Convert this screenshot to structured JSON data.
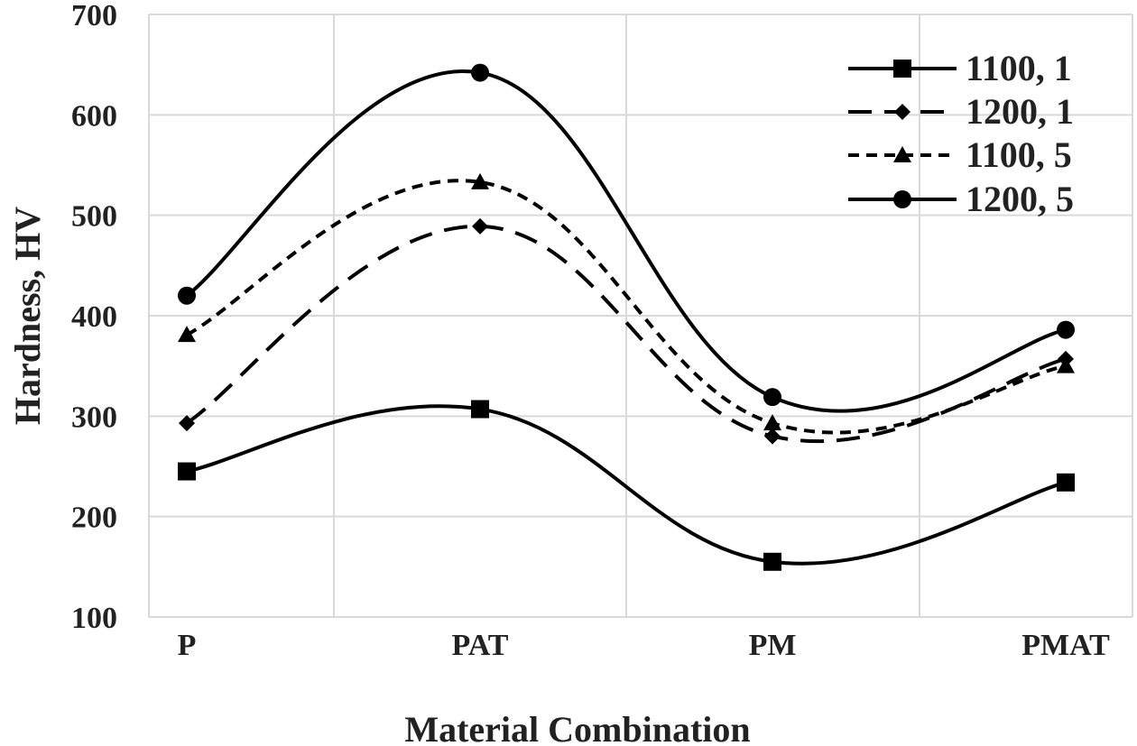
{
  "chart_data": {
    "type": "line",
    "title": "",
    "xlabel": "Material Combination",
    "ylabel": "Hardness, HV",
    "categories": [
      "P",
      "PAT",
      "PM",
      "PMAT"
    ],
    "ylim": [
      100,
      700
    ],
    "yticks": [
      100,
      200,
      300,
      400,
      500,
      600,
      700
    ],
    "grid": true,
    "legend_position": "top-right",
    "series": [
      {
        "name": "1100, 1",
        "values": [
          245,
          307,
          155,
          234
        ],
        "marker": "square",
        "dash": "solid"
      },
      {
        "name": "1200, 1",
        "values": [
          293,
          489,
          280,
          357
        ],
        "marker": "diamond",
        "dash": "long-dash"
      },
      {
        "name": "1100, 5",
        "values": [
          381,
          533,
          293,
          350
        ],
        "marker": "triangle",
        "dash": "short-dash"
      },
      {
        "name": "1200, 5",
        "values": [
          420,
          642,
          319,
          386
        ],
        "marker": "circle",
        "dash": "solid"
      }
    ]
  }
}
